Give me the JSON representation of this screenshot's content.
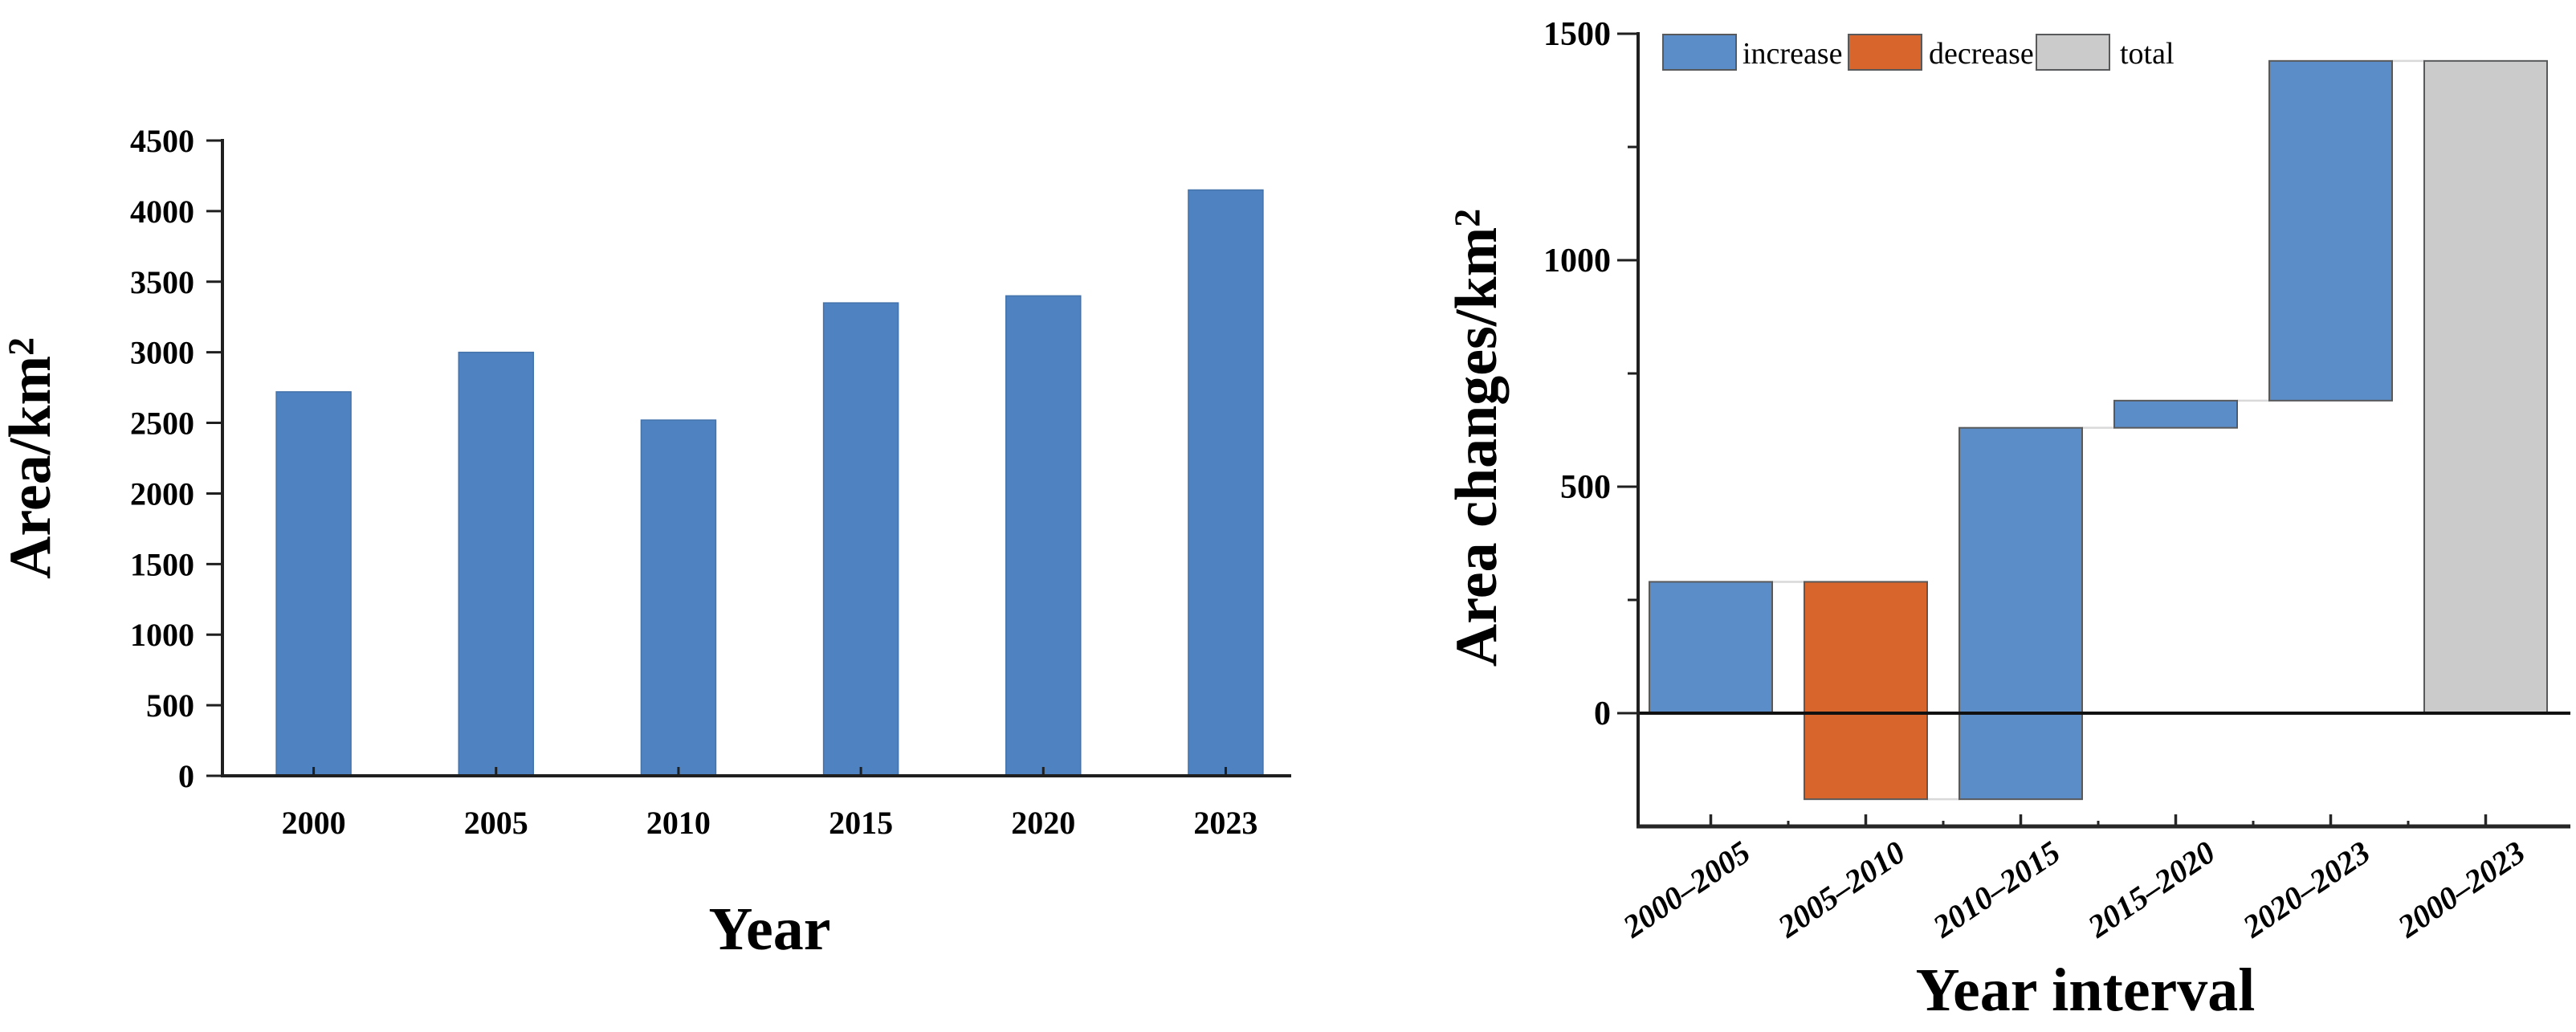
{
  "figure": {
    "background": "#ffffff"
  },
  "palette": {
    "bar_blue": "#4f82c0",
    "bar_blue_edge": "#4473ab",
    "increase": "#5b8dc8",
    "decrease": "#d8662c",
    "total": "#cbcbcb",
    "bar_border": "#58595b",
    "axis": "#1f1f1f",
    "zero_line": "#111111",
    "connector": "#d9d9d9",
    "text": "#000000"
  },
  "chart_data": [
    {
      "type": "bar",
      "title": "",
      "xlabel": "Year",
      "ylabel": "Area/km²",
      "categories": [
        "2000",
        "2005",
        "2010",
        "2015",
        "2020",
        "2023"
      ],
      "values": [
        2720,
        3000,
        2520,
        3350,
        3400,
        4150
      ],
      "ylim": [
        0,
        4500
      ],
      "ytick_step": 500,
      "grid": false,
      "legend_position": "none"
    },
    {
      "type": "waterfall",
      "title": "",
      "xlabel": "Year interval",
      "ylabel": "Area changes/km²",
      "categories": [
        "2000–2005",
        "2005–2010",
        "2010–2015",
        "2015–2020",
        "2020–2023",
        "2000–2023"
      ],
      "bars": [
        {
          "category": "2000–2005",
          "kind": "increase",
          "from": 0,
          "to": 290
        },
        {
          "category": "2005–2010",
          "kind": "decrease",
          "from": 290,
          "to": -190
        },
        {
          "category": "2010–2015",
          "kind": "increase",
          "from": -190,
          "to": 630
        },
        {
          "category": "2015–2020",
          "kind": "increase",
          "from": 630,
          "to": 690
        },
        {
          "category": "2020–2023",
          "kind": "increase",
          "from": 690,
          "to": 1440
        },
        {
          "category": "2000–2023",
          "kind": "total",
          "from": 0,
          "to": 1440
        }
      ],
      "ylim": [
        -250,
        1500
      ],
      "yticks": [
        0,
        500,
        1000,
        1500
      ],
      "yminorticks": [
        250,
        750,
        1250
      ],
      "grid": false,
      "legend": [
        {
          "label": "increase",
          "kind": "increase"
        },
        {
          "label": "decrease",
          "kind": "decrease"
        },
        {
          "label": "total",
          "kind": "total"
        }
      ],
      "legend_position": "top-left-inside"
    }
  ]
}
